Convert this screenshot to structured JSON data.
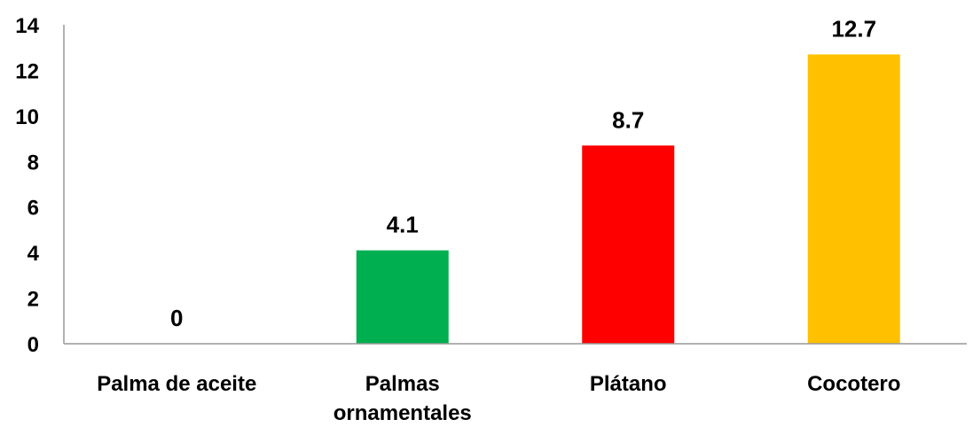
{
  "chart_data": {
    "type": "bar",
    "categories": [
      "Palma de aceite",
      "Palmas ornamentales",
      "Plátano",
      "Cocotero"
    ],
    "values": [
      0,
      4.1,
      8.7,
      12.7
    ],
    "value_labels": [
      "0",
      "4.1",
      "8.7",
      "12.7"
    ],
    "colors": [
      "#00b050",
      "#00b050",
      "#ff0000",
      "#ffc000"
    ],
    "ylim": [
      0,
      14
    ],
    "yticks": [
      0,
      2,
      4,
      6,
      8,
      10,
      12,
      14
    ],
    "ytick_labels": [
      "0",
      "2",
      "4",
      "6",
      "8",
      "10",
      "12",
      "14"
    ],
    "title": "",
    "xlabel": "",
    "ylabel": "",
    "grid": false,
    "legend": false
  }
}
